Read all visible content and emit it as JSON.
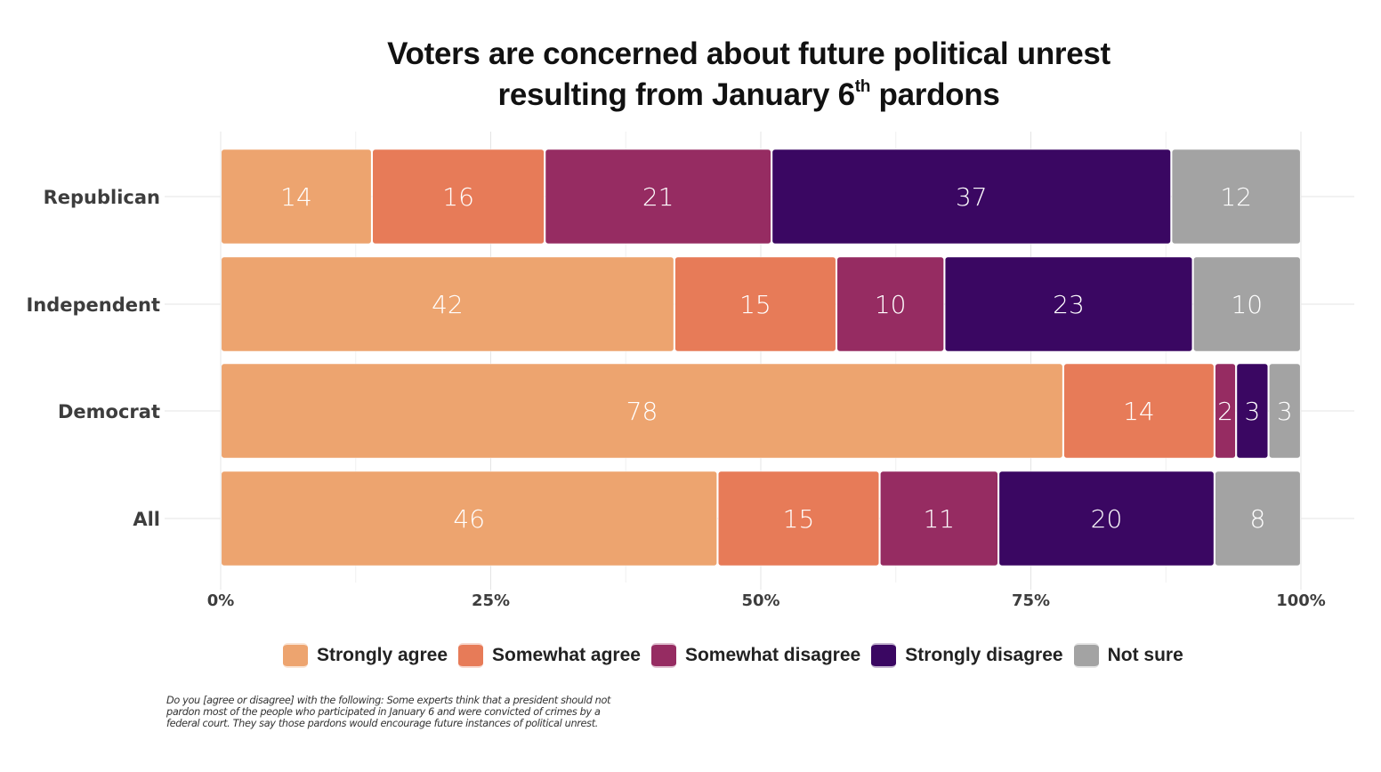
{
  "title": {
    "line1": "Voters are concerned about future political unrest",
    "line2_pre": "resulting from January 6",
    "line2_sup": "th",
    "line2_post": " pardons"
  },
  "chart_data": {
    "type": "bar",
    "orientation": "horizontal",
    "stacked": true,
    "title": "Voters are concerned about future political unrest resulting from January 6th pardons",
    "xlabel": "",
    "ylabel": "",
    "xlim": [
      0,
      100
    ],
    "x_ticks": [
      0,
      25,
      50,
      75,
      100
    ],
    "x_tick_labels": [
      "0%",
      "25%",
      "50%",
      "75%",
      "100%"
    ],
    "grid": true,
    "legend_position": "bottom",
    "categories": [
      "Republican",
      "Independent",
      "Democrat",
      "All"
    ],
    "series": [
      {
        "name": "Strongly agree",
        "color": "#EDA46F",
        "values": [
          14,
          42,
          78,
          46
        ]
      },
      {
        "name": "Somewhat agree",
        "color": "#E77B58",
        "values": [
          16,
          15,
          14,
          15
        ]
      },
      {
        "name": "Somewhat disagree",
        "color": "#962C62",
        "values": [
          21,
          10,
          2,
          11
        ]
      },
      {
        "name": "Strongly disagree",
        "color": "#3A0762",
        "values": [
          37,
          23,
          3,
          20
        ]
      },
      {
        "name": "Not sure",
        "color": "#A3A3A3",
        "values": [
          12,
          10,
          3,
          8
        ]
      }
    ]
  },
  "legend": [
    {
      "label": "Strongly agree",
      "color": "#EDA46F"
    },
    {
      "label": "Somewhat agree",
      "color": "#E77B58"
    },
    {
      "label": "Somewhat disagree",
      "color": "#962C62"
    },
    {
      "label": "Strongly disagree",
      "color": "#3A0762"
    },
    {
      "label": "Not sure",
      "color": "#A3A3A3"
    }
  ],
  "footnote": "Do you [agree or disagree] with the following: Some experts think that a president should not pardon most of the people who participated in January 6 and were convicted of crimes by a federal court. They say those pardons would encourage future instances of political unrest."
}
